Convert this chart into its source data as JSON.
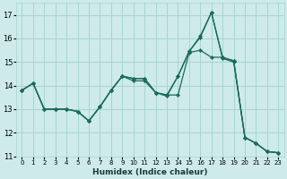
{
  "xlabel": "Humidex (Indice chaleur)",
  "xlim": [
    -0.5,
    23.5
  ],
  "ylim": [
    11,
    17.5
  ],
  "yticks": [
    11,
    12,
    13,
    14,
    15,
    16,
    17
  ],
  "xticks": [
    0,
    1,
    2,
    3,
    4,
    5,
    6,
    7,
    8,
    9,
    10,
    11,
    12,
    13,
    14,
    15,
    16,
    17,
    18,
    19,
    20,
    21,
    22,
    23
  ],
  "bg_color": "#ceeaea",
  "grid_color": "#a8d4d4",
  "line_color": "#1a6b5a",
  "line1_x": [
    0,
    1,
    2,
    3,
    4,
    5,
    6,
    7,
    8,
    9,
    10,
    11,
    12,
    13,
    14,
    15,
    16,
    17,
    18,
    19,
    20,
    21,
    22,
    23
  ],
  "line1_y": [
    13.8,
    14.1,
    13.0,
    13.0,
    13.0,
    12.9,
    12.5,
    13.1,
    13.8,
    14.4,
    14.3,
    14.3,
    13.7,
    13.6,
    14.4,
    15.45,
    16.05,
    17.1,
    15.2,
    15.05,
    11.8,
    11.55,
    11.2,
    11.15
  ],
  "line2_x": [
    0,
    1,
    2,
    3,
    4,
    5,
    6,
    7,
    8,
    9,
    10,
    11,
    12,
    13,
    14,
    15,
    16,
    17,
    18,
    19,
    20,
    21,
    22,
    23
  ],
  "line2_y": [
    13.8,
    14.1,
    13.0,
    13.0,
    13.0,
    12.9,
    12.5,
    13.1,
    13.8,
    14.4,
    14.3,
    14.3,
    13.7,
    13.6,
    13.6,
    15.4,
    15.5,
    15.2,
    15.2,
    15.05,
    11.8,
    11.55,
    11.2,
    11.15
  ],
  "line3_x": [
    0,
    1,
    2,
    3,
    4,
    5,
    6,
    7,
    8,
    9,
    10,
    11,
    12,
    13,
    14,
    15,
    16,
    17,
    18,
    19,
    20,
    21,
    22,
    23
  ],
  "line3_y": [
    13.8,
    14.1,
    13.0,
    13.0,
    13.0,
    12.9,
    12.5,
    13.1,
    13.8,
    14.4,
    14.2,
    14.2,
    13.7,
    13.55,
    14.4,
    15.45,
    16.1,
    17.1,
    15.15,
    15.0,
    11.8,
    11.55,
    11.2,
    11.15
  ]
}
